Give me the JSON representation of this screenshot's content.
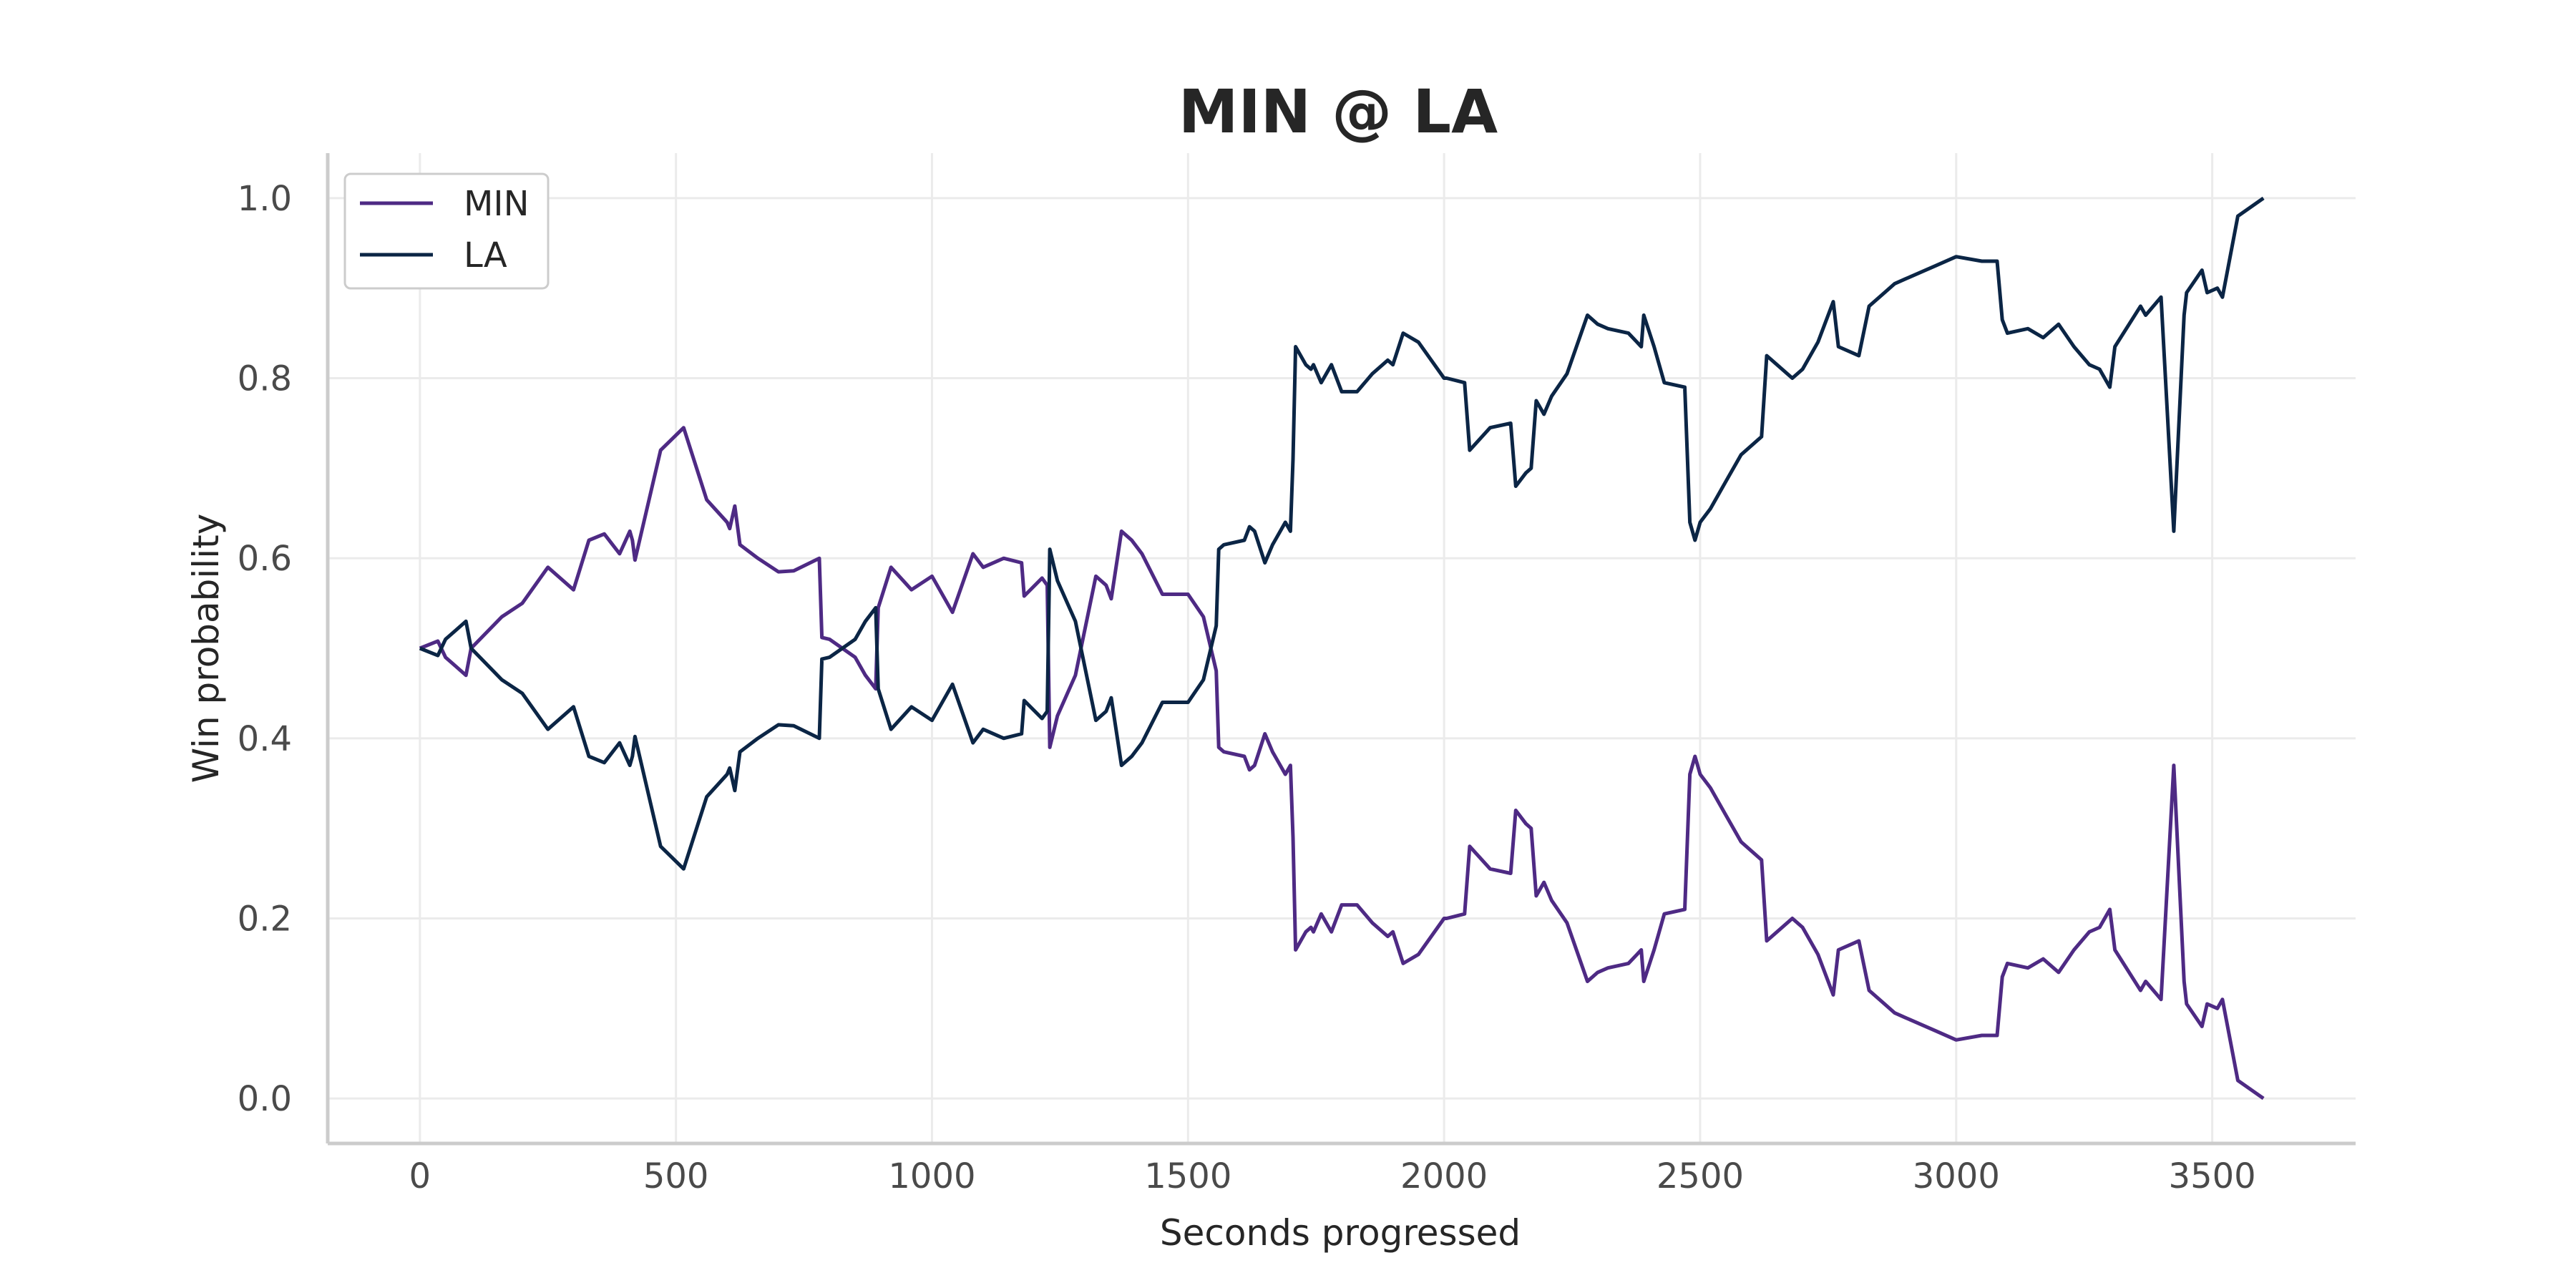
{
  "chart_data": {
    "type": "line",
    "title": "MIN @ LA",
    "xlabel": "Seconds progressed",
    "ylabel": "Win probability",
    "xlim": [
      -180,
      3780
    ],
    "ylim": [
      -0.05,
      1.05
    ],
    "xticks": [
      0,
      500,
      1000,
      1500,
      2000,
      2500,
      3000,
      3500
    ],
    "yticks": [
      0.0,
      0.2,
      0.4,
      0.6,
      0.8,
      1.0
    ],
    "xtick_labels": [
      "0",
      "500",
      "1000",
      "1500",
      "2000",
      "2500",
      "3000",
      "3500"
    ],
    "ytick_labels": [
      "0.0",
      "0.2",
      "0.4",
      "0.6",
      "0.8",
      "1.0"
    ],
    "grid": true,
    "legend_position": "top-left",
    "series": [
      {
        "name": "MIN",
        "color": "#4e2a84",
        "x": [
          0,
          35,
          50,
          90,
          100,
          160,
          200,
          250,
          300,
          330,
          360,
          390,
          410,
          415,
          420,
          470,
          515,
          560,
          600,
          605,
          615,
          625,
          660,
          700,
          730,
          780,
          785,
          800,
          850,
          870,
          890,
          895,
          920,
          960,
          1000,
          1040,
          1080,
          1100,
          1140,
          1175,
          1180,
          1215,
          1225,
          1230,
          1245,
          1280,
          1320,
          1340,
          1350,
          1370,
          1390,
          1410,
          1450,
          1500,
          1530,
          1555,
          1560,
          1570,
          1610,
          1620,
          1630,
          1650,
          1665,
          1690,
          1700,
          1705,
          1710,
          1730,
          1740,
          1745,
          1760,
          1780,
          1800,
          1830,
          1860,
          1890,
          1900,
          1920,
          1950,
          2000,
          2005,
          2040,
          2050,
          2090,
          2130,
          2140,
          2160,
          2170,
          2180,
          2195,
          2210,
          2240,
          2280,
          2300,
          2320,
          2360,
          2385,
          2390,
          2410,
          2430,
          2470,
          2480,
          2490,
          2495,
          2500,
          2520,
          2550,
          2580,
          2620,
          2630,
          2640,
          2680,
          2700,
          2730,
          2760,
          2770,
          2810,
          2830,
          2860,
          2880,
          2900,
          2960,
          3000,
          3050,
          3080,
          3090,
          3100,
          3140,
          3170,
          3200,
          3230,
          3260,
          3280,
          3300,
          3310,
          3360,
          3370,
          3400,
          3425,
          3445,
          3450,
          3480,
          3490,
          3510,
          3520,
          3550,
          3600
        ],
        "y": [
          0.5,
          0.508,
          0.49,
          0.47,
          0.5,
          0.535,
          0.55,
          0.59,
          0.565,
          0.62,
          0.627,
          0.605,
          0.63,
          0.62,
          0.598,
          0.72,
          0.745,
          0.665,
          0.64,
          0.633,
          0.658,
          0.615,
          0.6,
          0.585,
          0.586,
          0.6,
          0.512,
          0.51,
          0.49,
          0.47,
          0.455,
          0.545,
          0.59,
          0.565,
          0.58,
          0.54,
          0.605,
          0.59,
          0.6,
          0.595,
          0.558,
          0.578,
          0.57,
          0.39,
          0.425,
          0.47,
          0.58,
          0.57,
          0.555,
          0.63,
          0.62,
          0.605,
          0.56,
          0.56,
          0.535,
          0.475,
          0.39,
          0.385,
          0.38,
          0.365,
          0.37,
          0.405,
          0.385,
          0.36,
          0.37,
          0.29,
          0.165,
          0.185,
          0.19,
          0.185,
          0.205,
          0.185,
          0.215,
          0.215,
          0.195,
          0.18,
          0.185,
          0.15,
          0.16,
          0.2,
          0.2,
          0.205,
          0.28,
          0.255,
          0.25,
          0.32,
          0.305,
          0.3,
          0.225,
          0.24,
          0.22,
          0.195,
          0.13,
          0.14,
          0.145,
          0.15,
          0.165,
          0.13,
          0.165,
          0.205,
          0.21,
          0.36,
          0.38,
          0.37,
          0.36,
          0.345,
          0.315,
          0.285,
          0.265,
          0.175,
          0.18,
          0.2,
          0.19,
          0.16,
          0.115,
          0.165,
          0.175,
          0.12,
          0.105,
          0.095,
          0.09,
          0.075,
          0.065,
          0.07,
          0.07,
          0.135,
          0.15,
          0.145,
          0.155,
          0.14,
          0.165,
          0.185,
          0.19,
          0.21,
          0.165,
          0.12,
          0.13,
          0.11,
          0.37,
          0.13,
          0.105,
          0.08,
          0.105,
          0.1,
          0.11,
          0.02,
          0.0
        ]
      },
      {
        "name": "LA",
        "color": "#0b2545",
        "x": [
          0,
          35,
          50,
          90,
          100,
          160,
          200,
          250,
          300,
          330,
          360,
          390,
          410,
          415,
          420,
          470,
          515,
          560,
          600,
          605,
          615,
          625,
          660,
          700,
          730,
          780,
          785,
          800,
          850,
          870,
          890,
          895,
          920,
          960,
          1000,
          1040,
          1080,
          1100,
          1140,
          1175,
          1180,
          1215,
          1225,
          1230,
          1245,
          1280,
          1320,
          1340,
          1350,
          1370,
          1390,
          1410,
          1450,
          1500,
          1530,
          1555,
          1560,
          1570,
          1610,
          1620,
          1630,
          1650,
          1665,
          1690,
          1700,
          1705,
          1710,
          1730,
          1740,
          1745,
          1760,
          1780,
          1800,
          1830,
          1860,
          1890,
          1900,
          1920,
          1950,
          2000,
          2005,
          2040,
          2050,
          2090,
          2130,
          2140,
          2160,
          2170,
          2180,
          2195,
          2210,
          2240,
          2280,
          2300,
          2320,
          2360,
          2385,
          2390,
          2410,
          2430,
          2470,
          2480,
          2490,
          2495,
          2500,
          2520,
          2550,
          2580,
          2620,
          2630,
          2640,
          2680,
          2700,
          2730,
          2760,
          2770,
          2810,
          2830,
          2860,
          2880,
          2900,
          2960,
          3000,
          3050,
          3080,
          3090,
          3100,
          3140,
          3170,
          3200,
          3230,
          3260,
          3280,
          3300,
          3310,
          3360,
          3370,
          3400,
          3425,
          3445,
          3450,
          3480,
          3490,
          3510,
          3520,
          3550,
          3600
        ],
        "y": [
          0.5,
          0.492,
          0.51,
          0.53,
          0.5,
          0.465,
          0.45,
          0.41,
          0.435,
          0.38,
          0.373,
          0.395,
          0.37,
          0.38,
          0.402,
          0.28,
          0.255,
          0.335,
          0.36,
          0.367,
          0.342,
          0.385,
          0.4,
          0.415,
          0.414,
          0.4,
          0.488,
          0.49,
          0.51,
          0.53,
          0.545,
          0.455,
          0.41,
          0.435,
          0.42,
          0.46,
          0.395,
          0.41,
          0.4,
          0.405,
          0.442,
          0.422,
          0.43,
          0.61,
          0.575,
          0.53,
          0.42,
          0.43,
          0.445,
          0.37,
          0.38,
          0.395,
          0.44,
          0.44,
          0.465,
          0.525,
          0.61,
          0.615,
          0.62,
          0.635,
          0.63,
          0.595,
          0.615,
          0.64,
          0.63,
          0.71,
          0.835,
          0.815,
          0.81,
          0.815,
          0.795,
          0.815,
          0.785,
          0.785,
          0.805,
          0.82,
          0.815,
          0.85,
          0.84,
          0.8,
          0.8,
          0.795,
          0.72,
          0.745,
          0.75,
          0.68,
          0.695,
          0.7,
          0.775,
          0.76,
          0.78,
          0.805,
          0.87,
          0.86,
          0.855,
          0.85,
          0.835,
          0.87,
          0.835,
          0.795,
          0.79,
          0.64,
          0.62,
          0.63,
          0.64,
          0.655,
          0.685,
          0.715,
          0.735,
          0.825,
          0.82,
          0.8,
          0.81,
          0.84,
          0.885,
          0.835,
          0.825,
          0.88,
          0.895,
          0.905,
          0.91,
          0.925,
          0.935,
          0.93,
          0.93,
          0.865,
          0.85,
          0.855,
          0.845,
          0.86,
          0.835,
          0.815,
          0.81,
          0.79,
          0.835,
          0.88,
          0.87,
          0.89,
          0.63,
          0.87,
          0.895,
          0.92,
          0.895,
          0.9,
          0.89,
          0.98,
          1.0
        ]
      }
    ]
  }
}
